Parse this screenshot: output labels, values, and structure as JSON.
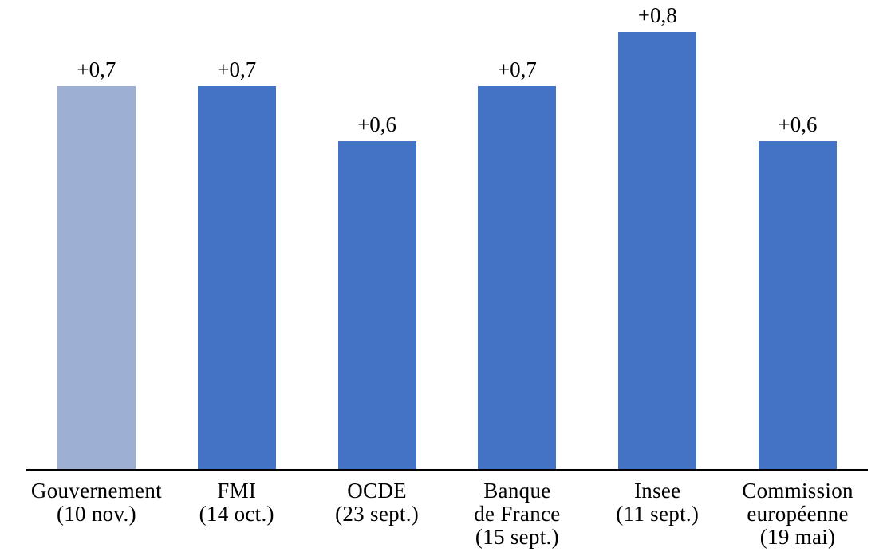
{
  "chart_data": {
    "type": "bar",
    "categories": [
      "Gouvernement\n(10 nov.)",
      "FMI\n(14 oct.)",
      "OCDE\n(23 sept.)",
      "Banque\nde France\n(15 sept.)",
      "Insee\n(11 sept.)",
      "Commission\neuropéenne\n(19 mai)"
    ],
    "values": [
      0.7,
      0.7,
      0.6,
      0.7,
      0.8,
      0.6
    ],
    "value_labels": [
      "+0,7",
      "+0,7",
      "+0,6",
      "+0,7",
      "+0,8",
      "+0,6"
    ],
    "bar_colors": [
      "#9DAFD2",
      "#4472C4",
      "#4472C4",
      "#4472C4",
      "#4472C4",
      "#4472C4"
    ],
    "title": "",
    "xlabel": "",
    "ylabel": "",
    "ylim": [
      0,
      0.858
    ],
    "grid": false,
    "legend": false,
    "colors": {
      "highlight_bar": "#9DAFD2",
      "default_bar": "#4472C4",
      "axis_line": "#000000",
      "text": "#000000",
      "background": "#FFFFFF"
    }
  }
}
